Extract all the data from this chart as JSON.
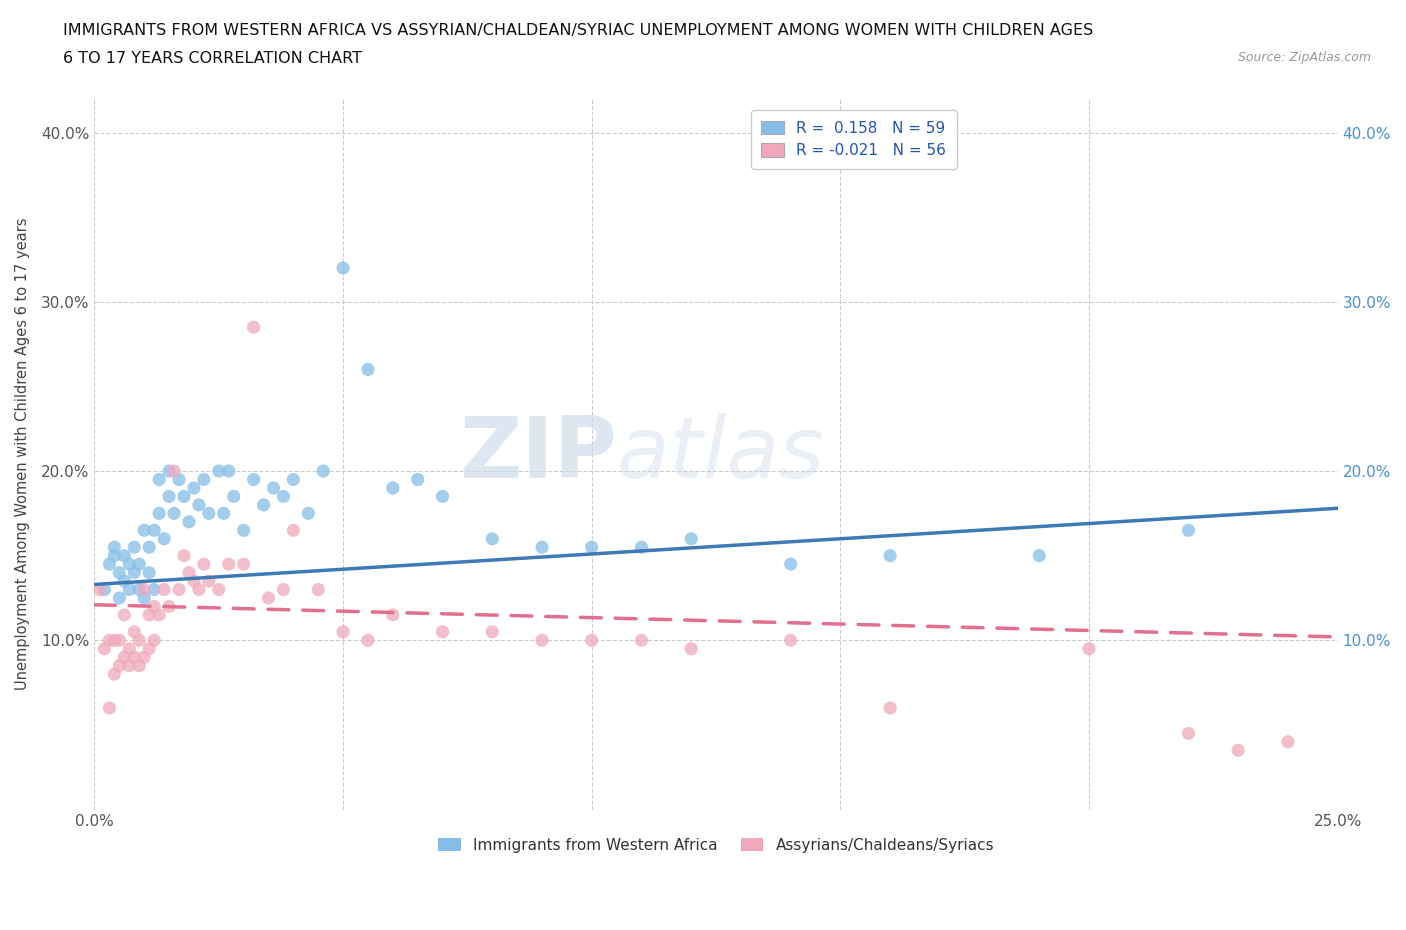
{
  "title_line1": "IMMIGRANTS FROM WESTERN AFRICA VS ASSYRIAN/CHALDEAN/SYRIAC UNEMPLOYMENT AMONG WOMEN WITH CHILDREN AGES",
  "title_line2": "6 TO 17 YEARS CORRELATION CHART",
  "source_text": "Source: ZipAtlas.com",
  "ylabel": "Unemployment Among Women with Children Ages 6 to 17 years",
  "xlim": [
    0.0,
    0.25
  ],
  "ylim": [
    0.0,
    0.42
  ],
  "blue_color": "#85bde8",
  "pink_color": "#f0a8bc",
  "blue_line_color": "#3d7ab5",
  "pink_line_color": "#e0708e",
  "legend_r1": "R =  0.158   N = 59",
  "legend_r2": "R = -0.021   N = 56",
  "watermark_zip": "ZIP",
  "watermark_atlas": "atlas",
  "blue_scatter_x": [
    0.002,
    0.003,
    0.004,
    0.004,
    0.005,
    0.005,
    0.006,
    0.006,
    0.007,
    0.007,
    0.008,
    0.008,
    0.009,
    0.009,
    0.01,
    0.01,
    0.011,
    0.011,
    0.012,
    0.012,
    0.013,
    0.013,
    0.014,
    0.015,
    0.015,
    0.016,
    0.017,
    0.018,
    0.019,
    0.02,
    0.021,
    0.022,
    0.023,
    0.025,
    0.026,
    0.027,
    0.028,
    0.03,
    0.032,
    0.034,
    0.036,
    0.038,
    0.04,
    0.043,
    0.046,
    0.05,
    0.055,
    0.06,
    0.065,
    0.07,
    0.08,
    0.09,
    0.1,
    0.11,
    0.12,
    0.14,
    0.16,
    0.19,
    0.22
  ],
  "blue_scatter_y": [
    0.13,
    0.145,
    0.15,
    0.155,
    0.125,
    0.14,
    0.135,
    0.15,
    0.13,
    0.145,
    0.14,
    0.155,
    0.13,
    0.145,
    0.125,
    0.165,
    0.14,
    0.155,
    0.13,
    0.165,
    0.175,
    0.195,
    0.16,
    0.185,
    0.2,
    0.175,
    0.195,
    0.185,
    0.17,
    0.19,
    0.18,
    0.195,
    0.175,
    0.2,
    0.175,
    0.2,
    0.185,
    0.165,
    0.195,
    0.18,
    0.19,
    0.185,
    0.195,
    0.175,
    0.2,
    0.32,
    0.26,
    0.19,
    0.195,
    0.185,
    0.16,
    0.155,
    0.155,
    0.155,
    0.16,
    0.145,
    0.15,
    0.15,
    0.165
  ],
  "pink_scatter_x": [
    0.001,
    0.002,
    0.003,
    0.003,
    0.004,
    0.004,
    0.005,
    0.005,
    0.006,
    0.006,
    0.007,
    0.007,
    0.008,
    0.008,
    0.009,
    0.009,
    0.01,
    0.01,
    0.011,
    0.011,
    0.012,
    0.012,
    0.013,
    0.014,
    0.015,
    0.016,
    0.017,
    0.018,
    0.019,
    0.02,
    0.021,
    0.022,
    0.023,
    0.025,
    0.027,
    0.03,
    0.032,
    0.035,
    0.038,
    0.04,
    0.045,
    0.05,
    0.055,
    0.06,
    0.07,
    0.08,
    0.09,
    0.1,
    0.11,
    0.12,
    0.14,
    0.16,
    0.2,
    0.22,
    0.23,
    0.24
  ],
  "pink_scatter_y": [
    0.13,
    0.095,
    0.1,
    0.06,
    0.08,
    0.1,
    0.085,
    0.1,
    0.09,
    0.115,
    0.085,
    0.095,
    0.09,
    0.105,
    0.085,
    0.1,
    0.09,
    0.13,
    0.095,
    0.115,
    0.1,
    0.12,
    0.115,
    0.13,
    0.12,
    0.2,
    0.13,
    0.15,
    0.14,
    0.135,
    0.13,
    0.145,
    0.135,
    0.13,
    0.145,
    0.145,
    0.285,
    0.125,
    0.13,
    0.165,
    0.13,
    0.105,
    0.1,
    0.115,
    0.105,
    0.105,
    0.1,
    0.1,
    0.1,
    0.095,
    0.1,
    0.06,
    0.095,
    0.045,
    0.035,
    0.04
  ],
  "blue_line_x0": 0.0,
  "blue_line_x1": 0.25,
  "blue_line_y0": 0.133,
  "blue_line_y1": 0.178,
  "pink_line_x0": 0.0,
  "pink_line_x1": 0.25,
  "pink_line_y0": 0.121,
  "pink_line_y1": 0.102
}
